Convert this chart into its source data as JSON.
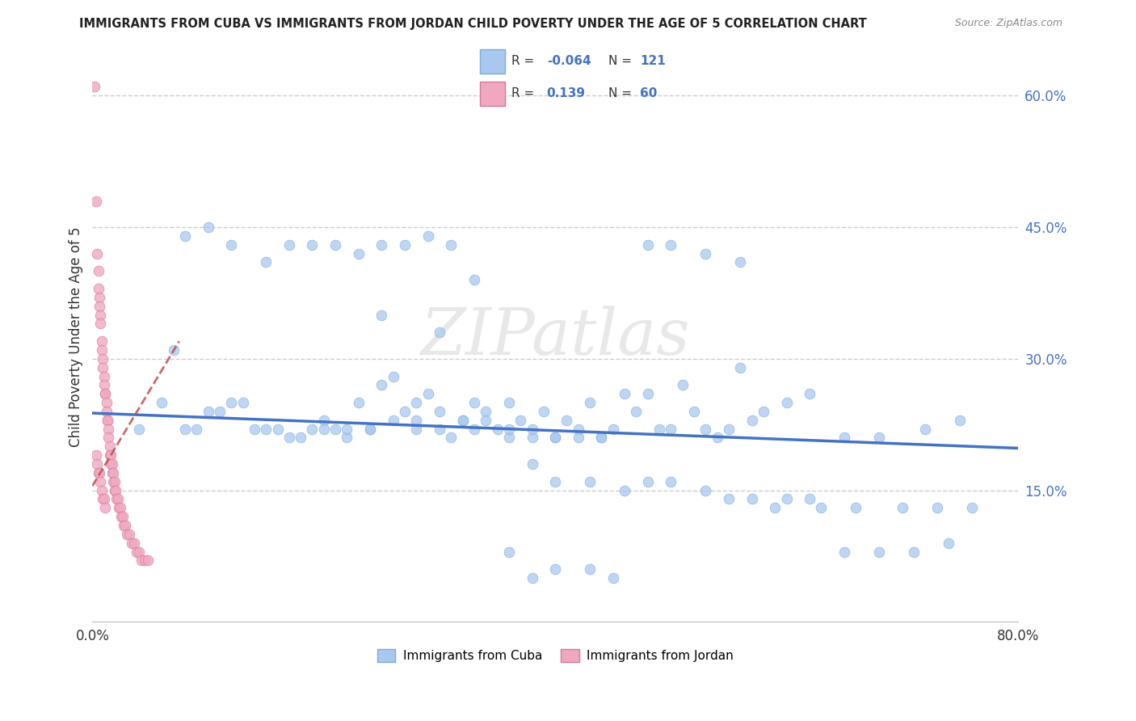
{
  "title": "IMMIGRANTS FROM CUBA VS IMMIGRANTS FROM JORDAN CHILD POVERTY UNDER THE AGE OF 5 CORRELATION CHART",
  "source": "Source: ZipAtlas.com",
  "ylabel": "Child Poverty Under the Age of 5",
  "xlim": [
    0.0,
    0.8
  ],
  "ylim": [
    0.0,
    0.65
  ],
  "ytick_values_right": [
    0.15,
    0.3,
    0.45,
    0.6
  ],
  "cuba_color": "#a8c8f0",
  "cuba_edge_color": "#7aadd4",
  "jordan_color": "#f0a8c0",
  "jordan_edge_color": "#d4799a",
  "cuba_line_color": "#4472c4",
  "jordan_line_color": "#c0504d",
  "cuba_R": -0.064,
  "cuba_N": 121,
  "jordan_R": 0.139,
  "jordan_N": 60,
  "watermark": "ZIPatlas",
  "background_color": "#ffffff",
  "grid_color": "#cccccc",
  "title_color": "#222222",
  "source_color": "#888888",
  "right_tick_color": "#4472c4",
  "cuba_scatter_x": [
    0.04,
    0.06,
    0.07,
    0.08,
    0.09,
    0.1,
    0.11,
    0.12,
    0.13,
    0.14,
    0.15,
    0.16,
    0.17,
    0.18,
    0.19,
    0.2,
    0.21,
    0.22,
    0.23,
    0.24,
    0.25,
    0.26,
    0.27,
    0.28,
    0.29,
    0.3,
    0.31,
    0.32,
    0.33,
    0.34,
    0.35,
    0.36,
    0.37,
    0.38,
    0.39,
    0.4,
    0.41,
    0.42,
    0.43,
    0.44,
    0.45,
    0.46,
    0.47,
    0.48,
    0.49,
    0.5,
    0.51,
    0.52,
    0.53,
    0.54,
    0.55,
    0.56,
    0.57,
    0.58,
    0.6,
    0.62,
    0.65,
    0.68,
    0.72,
    0.75,
    0.08,
    0.1,
    0.12,
    0.15,
    0.17,
    0.19,
    0.21,
    0.23,
    0.25,
    0.27,
    0.29,
    0.31,
    0.33,
    0.36,
    0.38,
    0.4,
    0.43,
    0.46,
    0.48,
    0.5,
    0.53,
    0.55,
    0.57,
    0.6,
    0.63,
    0.66,
    0.7,
    0.73,
    0.76,
    0.25,
    0.28,
    0.3,
    0.33,
    0.36,
    0.38,
    0.4,
    0.43,
    0.45,
    0.48,
    0.5,
    0.53,
    0.56,
    0.59,
    0.62,
    0.65,
    0.68,
    0.71,
    0.74,
    0.2,
    0.22,
    0.24,
    0.26,
    0.28,
    0.3,
    0.32,
    0.34,
    0.36,
    0.38,
    0.4,
    0.42,
    0.44
  ],
  "cuba_scatter_y": [
    0.22,
    0.25,
    0.31,
    0.22,
    0.22,
    0.24,
    0.24,
    0.25,
    0.25,
    0.22,
    0.22,
    0.22,
    0.21,
    0.21,
    0.22,
    0.23,
    0.22,
    0.21,
    0.25,
    0.22,
    0.27,
    0.28,
    0.24,
    0.25,
    0.26,
    0.22,
    0.21,
    0.23,
    0.22,
    0.24,
    0.22,
    0.21,
    0.23,
    0.21,
    0.24,
    0.21,
    0.23,
    0.22,
    0.25,
    0.21,
    0.22,
    0.26,
    0.24,
    0.26,
    0.22,
    0.22,
    0.27,
    0.24,
    0.22,
    0.21,
    0.22,
    0.29,
    0.23,
    0.24,
    0.25,
    0.26,
    0.21,
    0.21,
    0.22,
    0.23,
    0.44,
    0.45,
    0.43,
    0.41,
    0.43,
    0.43,
    0.43,
    0.42,
    0.43,
    0.43,
    0.44,
    0.43,
    0.39,
    0.25,
    0.18,
    0.16,
    0.16,
    0.15,
    0.16,
    0.16,
    0.15,
    0.14,
    0.14,
    0.14,
    0.13,
    0.13,
    0.13,
    0.13,
    0.13,
    0.35,
    0.22,
    0.33,
    0.25,
    0.08,
    0.05,
    0.06,
    0.06,
    0.05,
    0.43,
    0.43,
    0.42,
    0.41,
    0.13,
    0.14,
    0.08,
    0.08,
    0.08,
    0.09,
    0.22,
    0.22,
    0.22,
    0.23,
    0.23,
    0.24,
    0.23,
    0.23,
    0.22,
    0.22,
    0.21,
    0.21,
    0.21
  ],
  "jordan_scatter_x": [
    0.002,
    0.003,
    0.004,
    0.005,
    0.005,
    0.006,
    0.006,
    0.007,
    0.007,
    0.008,
    0.008,
    0.009,
    0.009,
    0.01,
    0.01,
    0.011,
    0.011,
    0.012,
    0.012,
    0.013,
    0.013,
    0.014,
    0.014,
    0.015,
    0.015,
    0.016,
    0.016,
    0.017,
    0.017,
    0.018,
    0.018,
    0.019,
    0.019,
    0.02,
    0.021,
    0.022,
    0.023,
    0.024,
    0.025,
    0.026,
    0.027,
    0.028,
    0.03,
    0.032,
    0.034,
    0.036,
    0.038,
    0.04,
    0.042,
    0.045,
    0.048,
    0.003,
    0.004,
    0.005,
    0.006,
    0.007,
    0.008,
    0.009,
    0.01,
    0.011
  ],
  "jordan_scatter_y": [
    0.61,
    0.48,
    0.42,
    0.4,
    0.38,
    0.37,
    0.36,
    0.35,
    0.34,
    0.32,
    0.31,
    0.3,
    0.29,
    0.28,
    0.27,
    0.26,
    0.26,
    0.25,
    0.24,
    0.23,
    0.23,
    0.22,
    0.21,
    0.2,
    0.19,
    0.19,
    0.18,
    0.18,
    0.17,
    0.17,
    0.16,
    0.16,
    0.15,
    0.15,
    0.14,
    0.14,
    0.13,
    0.13,
    0.12,
    0.12,
    0.11,
    0.11,
    0.1,
    0.1,
    0.09,
    0.09,
    0.08,
    0.08,
    0.07,
    0.07,
    0.07,
    0.19,
    0.18,
    0.17,
    0.17,
    0.16,
    0.15,
    0.14,
    0.14,
    0.13
  ],
  "cuba_trend_x": [
    0.0,
    0.8
  ],
  "cuba_trend_y": [
    0.238,
    0.198
  ],
  "jordan_trend_x": [
    0.0,
    0.075
  ],
  "jordan_trend_y": [
    0.155,
    0.32
  ]
}
